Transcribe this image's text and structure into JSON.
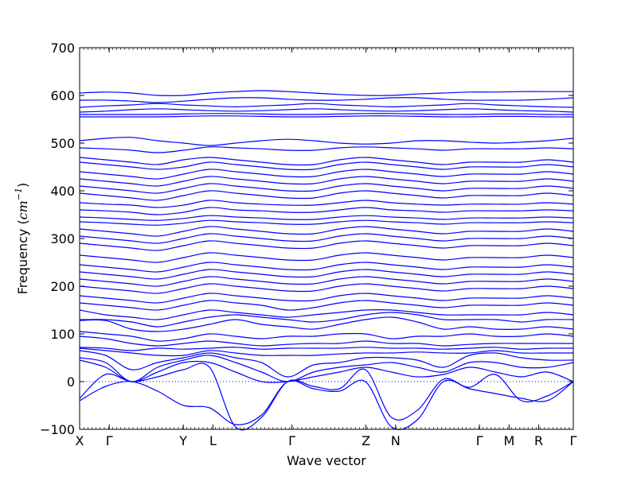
{
  "chart_data": {
    "type": "line",
    "ylabel": "Frequency (cm⁻¹)",
    "ylabel_prefix": "Frequency (",
    "ylabel_unit": "cm",
    "ylabel_exp": "−1",
    "ylabel_suffix": ")",
    "xlabel": "Wave vector",
    "ylim": [
      -100,
      700
    ],
    "yticks": [
      -100,
      0,
      100,
      200,
      300,
      400,
      500,
      600,
      700
    ],
    "kpoints": [
      {
        "label": "X",
        "pos": 0.0
      },
      {
        "label": "Γ",
        "pos": 0.06
      },
      {
        "label": "Y",
        "pos": 0.21
      },
      {
        "label": "L",
        "pos": 0.27
      },
      {
        "label": "Γ",
        "pos": 0.43
      },
      {
        "label": "Z",
        "pos": 0.58
      },
      {
        "label": "N",
        "pos": 0.64
      },
      {
        "label": "Γ",
        "pos": 0.81
      },
      {
        "label": "M",
        "pos": 0.87
      },
      {
        "label": "R",
        "pos": 0.93
      },
      {
        "label": "Γ",
        "pos": 1.0
      }
    ],
    "zero_line": {
      "y": 0,
      "style": "dotted"
    },
    "grid": false,
    "series_color": "#0000ff",
    "branches": [
      [
        -40,
        -10,
        0,
        -20,
        -50,
        -55,
        -90,
        -70,
        0,
        -15,
        -20,
        0,
        -95,
        -80,
        0,
        -15,
        -25,
        -35,
        -40,
        0
      ],
      [
        -35,
        15,
        0,
        10,
        25,
        30,
        -95,
        -75,
        0,
        -10,
        -15,
        25,
        -75,
        -60,
        5,
        -12,
        15,
        -40,
        -30,
        0
      ],
      [
        45,
        30,
        0,
        20,
        40,
        40,
        20,
        0,
        0,
        10,
        20,
        30,
        20,
        10,
        15,
        30,
        20,
        10,
        20,
        0
      ],
      [
        50,
        40,
        0,
        30,
        45,
        55,
        40,
        20,
        0,
        20,
        30,
        35,
        40,
        30,
        20,
        40,
        40,
        30,
        30,
        40
      ],
      [
        65,
        55,
        25,
        40,
        50,
        60,
        50,
        40,
        10,
        35,
        40,
        50,
        50,
        45,
        30,
        55,
        60,
        50,
        45,
        45
      ],
      [
        70,
        65,
        60,
        55,
        55,
        65,
        60,
        55,
        55,
        55,
        58,
        60,
        60,
        62,
        60,
        60,
        65,
        60,
        60,
        60
      ],
      [
        72,
        70,
        65,
        70,
        68,
        70,
        72,
        68,
        70,
        70,
        70,
        72,
        70,
        70,
        68,
        70,
        72,
        68,
        70,
        70
      ],
      [
        95,
        90,
        80,
        75,
        80,
        85,
        80,
        75,
        78,
        80,
        80,
        85,
        80,
        80,
        75,
        78,
        80,
        80,
        80,
        80
      ],
      [
        105,
        100,
        95,
        85,
        90,
        100,
        95,
        90,
        95,
        95,
        100,
        100,
        90,
        95,
        95,
        100,
        95,
        95,
        100,
        95
      ],
      [
        128,
        128,
        110,
        105,
        110,
        120,
        130,
        120,
        115,
        110,
        120,
        130,
        135,
        125,
        110,
        115,
        110,
        110,
        115,
        110
      ],
      [
        130,
        130,
        125,
        115,
        125,
        135,
        140,
        135,
        130,
        125,
        130,
        140,
        145,
        140,
        130,
        130,
        130,
        125,
        130,
        130
      ],
      [
        150,
        140,
        135,
        130,
        140,
        150,
        145,
        140,
        135,
        140,
        145,
        150,
        150,
        145,
        140,
        140,
        140,
        140,
        145,
        140
      ],
      [
        165,
        160,
        155,
        150,
        160,
        170,
        165,
        160,
        150,
        155,
        165,
        170,
        165,
        160,
        155,
        160,
        160,
        160,
        165,
        160
      ],
      [
        180,
        175,
        170,
        165,
        175,
        185,
        180,
        175,
        170,
        170,
        180,
        185,
        180,
        175,
        170,
        175,
        175,
        175,
        180,
        175
      ],
      [
        200,
        195,
        190,
        185,
        195,
        205,
        200,
        195,
        190,
        190,
        200,
        205,
        200,
        195,
        190,
        195,
        195,
        195,
        200,
        195
      ],
      [
        215,
        210,
        205,
        200,
        210,
        220,
        215,
        210,
        205,
        205,
        215,
        220,
        215,
        210,
        205,
        210,
        210,
        210,
        215,
        210
      ],
      [
        230,
        225,
        220,
        215,
        225,
        235,
        230,
        225,
        220,
        220,
        230,
        235,
        230,
        225,
        220,
        225,
        225,
        225,
        230,
        225
      ],
      [
        245,
        240,
        235,
        230,
        240,
        250,
        245,
        240,
        235,
        235,
        245,
        250,
        245,
        240,
        235,
        240,
        240,
        240,
        245,
        240
      ],
      [
        265,
        260,
        255,
        250,
        260,
        270,
        265,
        260,
        255,
        255,
        265,
        270,
        265,
        260,
        255,
        260,
        260,
        260,
        265,
        260
      ],
      [
        290,
        285,
        280,
        275,
        285,
        295,
        290,
        285,
        280,
        280,
        290,
        295,
        290,
        285,
        280,
        285,
        285,
        285,
        290,
        285
      ],
      [
        305,
        300,
        295,
        290,
        300,
        310,
        305,
        300,
        295,
        295,
        305,
        310,
        305,
        300,
        295,
        300,
        300,
        300,
        305,
        300
      ],
      [
        320,
        315,
        310,
        305,
        315,
        325,
        320,
        315,
        310,
        310,
        320,
        325,
        320,
        315,
        310,
        315,
        315,
        315,
        320,
        315
      ],
      [
        335,
        333,
        330,
        328,
        332,
        338,
        335,
        333,
        330,
        330,
        335,
        338,
        335,
        333,
        330,
        333,
        333,
        333,
        335,
        333
      ],
      [
        345,
        343,
        340,
        338,
        342,
        348,
        345,
        343,
        340,
        340,
        345,
        348,
        345,
        343,
        340,
        343,
        343,
        343,
        345,
        343
      ],
      [
        360,
        358,
        355,
        350,
        355,
        365,
        360,
        358,
        355,
        355,
        360,
        365,
        360,
        358,
        355,
        358,
        358,
        358,
        360,
        358
      ],
      [
        375,
        372,
        370,
        365,
        370,
        380,
        375,
        372,
        370,
        370,
        375,
        380,
        375,
        372,
        370,
        372,
        372,
        372,
        375,
        372
      ],
      [
        395,
        390,
        385,
        380,
        390,
        400,
        395,
        390,
        385,
        385,
        395,
        400,
        395,
        390,
        385,
        390,
        390,
        390,
        395,
        390
      ],
      [
        410,
        405,
        400,
        395,
        405,
        415,
        410,
        405,
        400,
        400,
        410,
        415,
        410,
        405,
        400,
        405,
        405,
        405,
        410,
        405
      ],
      [
        425,
        420,
        415,
        410,
        420,
        430,
        425,
        420,
        415,
        415,
        425,
        430,
        425,
        420,
        415,
        420,
        420,
        420,
        425,
        420
      ],
      [
        440,
        435,
        430,
        425,
        435,
        445,
        440,
        435,
        430,
        430,
        440,
        445,
        440,
        435,
        430,
        435,
        435,
        435,
        440,
        435
      ],
      [
        460,
        455,
        450,
        445,
        450,
        460,
        455,
        450,
        445,
        445,
        455,
        460,
        455,
        450,
        445,
        450,
        450,
        450,
        455,
        450
      ],
      [
        470,
        465,
        460,
        455,
        465,
        470,
        465,
        460,
        455,
        455,
        465,
        470,
        465,
        460,
        455,
        460,
        460,
        460,
        465,
        460
      ],
      [
        490,
        488,
        485,
        480,
        485,
        492,
        490,
        488,
        485,
        485,
        490,
        492,
        490,
        488,
        485,
        488,
        488,
        488,
        490,
        488
      ],
      [
        505,
        510,
        512,
        505,
        500,
        495,
        500,
        505,
        508,
        505,
        500,
        498,
        500,
        505,
        505,
        502,
        500,
        502,
        505,
        510
      ],
      [
        555,
        555,
        555,
        555,
        556,
        557,
        557,
        556,
        555,
        555,
        556,
        557,
        557,
        556,
        555,
        555,
        556,
        556,
        555,
        555
      ],
      [
        560,
        560,
        560,
        560,
        561,
        562,
        562,
        561,
        560,
        560,
        561,
        562,
        562,
        561,
        560,
        560,
        561,
        561,
        560,
        560
      ],
      [
        565,
        567,
        570,
        572,
        570,
        568,
        567,
        568,
        570,
        572,
        570,
        568,
        567,
        568,
        570,
        572,
        570,
        568,
        567,
        565
      ],
      [
        575,
        578,
        580,
        583,
        580,
        578,
        576,
        578,
        580,
        583,
        580,
        578,
        576,
        578,
        580,
        583,
        580,
        578,
        576,
        575
      ],
      [
        590,
        590,
        588,
        585,
        588,
        592,
        595,
        595,
        592,
        590,
        590,
        592,
        595,
        595,
        592,
        590,
        590,
        590,
        592,
        595
      ],
      [
        605,
        607,
        605,
        600,
        600,
        605,
        608,
        610,
        608,
        605,
        602,
        600,
        600,
        603,
        605,
        607,
        607,
        608,
        608,
        608
      ]
    ]
  }
}
